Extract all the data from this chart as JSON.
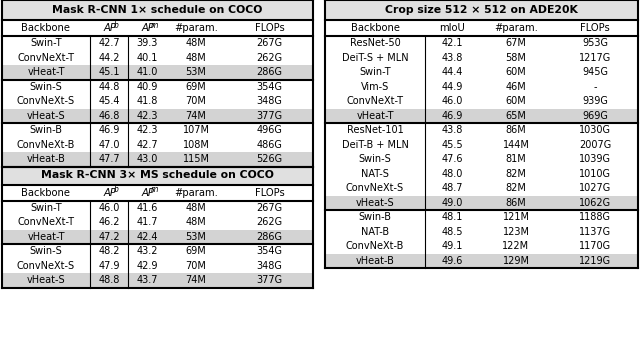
{
  "left_title": "Mask R-CNN 1× schedule on COCO",
  "left_subtitle": "Mask R-CNN 3× MS schedule on COCO",
  "right_title": "Crop size 512 × 512 on ADE20K",
  "left_groups_1x": [
    [
      [
        "Swin-T",
        "42.7",
        "39.3",
        "48M",
        "267G"
      ],
      [
        "ConvNeXt-T",
        "44.2",
        "40.1",
        "48M",
        "262G"
      ],
      [
        "vHeat-T",
        "45.1",
        "41.0",
        "53M",
        "286G"
      ]
    ],
    [
      [
        "Swin-S",
        "44.8",
        "40.9",
        "69M",
        "354G"
      ],
      [
        "ConvNeXt-S",
        "45.4",
        "41.8",
        "70M",
        "348G"
      ],
      [
        "vHeat-S",
        "46.8",
        "42.3",
        "74M",
        "377G"
      ]
    ],
    [
      [
        "Swin-B",
        "46.9",
        "42.3",
        "107M",
        "496G"
      ],
      [
        "ConvNeXt-B",
        "47.0",
        "42.7",
        "108M",
        "486G"
      ],
      [
        "vHeat-B",
        "47.7",
        "43.0",
        "115M",
        "526G"
      ]
    ]
  ],
  "left_groups_3x": [
    [
      [
        "Swin-T",
        "46.0",
        "41.6",
        "48M",
        "267G"
      ],
      [
        "ConvNeXt-T",
        "46.2",
        "41.7",
        "48M",
        "262G"
      ],
      [
        "vHeat-T",
        "47.2",
        "42.4",
        "53M",
        "286G"
      ]
    ],
    [
      [
        "Swin-S",
        "48.2",
        "43.2",
        "69M",
        "354G"
      ],
      [
        "ConvNeXt-S",
        "47.9",
        "42.9",
        "70M",
        "348G"
      ],
      [
        "vHeat-S",
        "48.8",
        "43.7",
        "74M",
        "377G"
      ]
    ]
  ],
  "right_groups": [
    [
      [
        "ResNet-50",
        "42.1",
        "67M",
        "953G"
      ],
      [
        "DeiT-S + MLN",
        "43.8",
        "58M",
        "1217G"
      ],
      [
        "Swin-T",
        "44.4",
        "60M",
        "945G"
      ],
      [
        "Vim-S",
        "44.9",
        "46M",
        "-"
      ],
      [
        "ConvNeXt-T",
        "46.0",
        "60M",
        "939G"
      ],
      [
        "vHeat-T",
        "46.9",
        "65M",
        "969G"
      ]
    ],
    [
      [
        "ResNet-101",
        "43.8",
        "86M",
        "1030G"
      ],
      [
        "DeiT-B + MLN",
        "45.5",
        "144M",
        "2007G"
      ],
      [
        "Swin-S",
        "47.6",
        "81M",
        "1039G"
      ],
      [
        "NAT-S",
        "48.0",
        "82M",
        "1010G"
      ],
      [
        "ConvNeXt-S",
        "48.7",
        "82M",
        "1027G"
      ],
      [
        "vHeat-S",
        "49.0",
        "86M",
        "1062G"
      ]
    ],
    [
      [
        "Swin-B",
        "48.1",
        "121M",
        "1188G"
      ],
      [
        "NAT-B",
        "48.5",
        "123M",
        "1137G"
      ],
      [
        "ConvNeXt-B",
        "49.1",
        "122M",
        "1170G"
      ],
      [
        "vHeat-B",
        "49.6",
        "129M",
        "1219G"
      ]
    ]
  ],
  "highlight_color": "#d3d3d3",
  "bg_color": "#ffffff",
  "title_bg": "#e0e0e0",
  "lw_thick": 1.5,
  "lw_thin": 0.8
}
